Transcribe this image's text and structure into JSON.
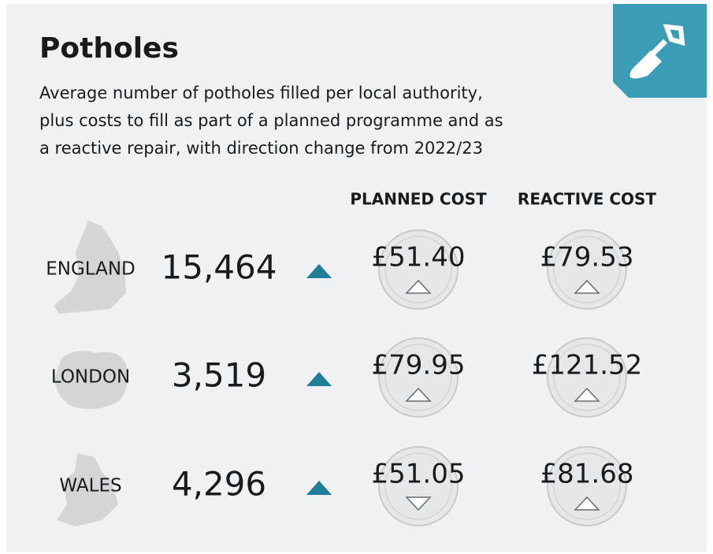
{
  "header": {
    "title": "Potholes",
    "subtitle": [
      "Average number of potholes filled per local authority,",
      "plus costs to fill as part of a planned programme and as",
      "a reactive repair, with direction change from 2022/23"
    ]
  },
  "columns": [
    "PLANNED COST",
    "REACTIVE COST"
  ],
  "rows": [
    {
      "region": "ENGLAND",
      "count": "15,464",
      "count_direction": "up",
      "planned": "£51.40",
      "planned_direction": "up",
      "reactive": "£79.53",
      "reactive_direction": "up"
    },
    {
      "region": "LONDON",
      "count": "3,519",
      "count_direction": "up",
      "planned": "£79.95",
      "planned_direction": "up",
      "reactive": "£121.52",
      "reactive_direction": "up"
    },
    {
      "region": "WALES",
      "count": "4,296",
      "count_direction": "up",
      "planned": "£51.05",
      "planned_direction": "down",
      "reactive": "£81.68",
      "reactive_direction": "up"
    }
  ]
}
